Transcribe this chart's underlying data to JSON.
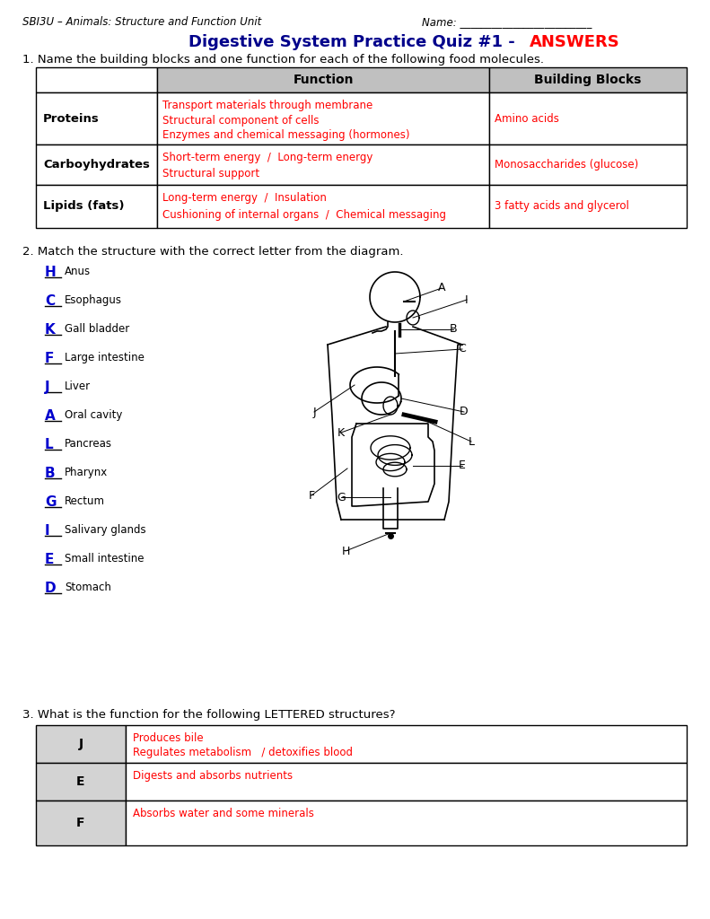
{
  "title_left": "SBI3U – Animals: Structure and Function Unit",
  "title_right": "Name: _________________________",
  "main_title": "Digestive System Practice Quiz #1 - ",
  "answers_word": "ANSWERS",
  "q1_text": "1. Name the building blocks and one function for each of the following food molecules.",
  "table1_headers": [
    "",
    "Function",
    "Building Blocks"
  ],
  "table1_rows": [
    {
      "molecule": "Proteins",
      "function": "Transport materials through membrane\nStructural component of cells\nEnzymes and chemical messaging (hormones)",
      "building_blocks": "Amino acids"
    },
    {
      "molecule": "Carboyhydrates",
      "function": "Short-term energy  /  Long-term energy\nStructural support",
      "building_blocks": "Monosaccharides (glucose)"
    },
    {
      "molecule": "Lipids (fats)",
      "function": "Long-term energy  /  Insulation\nCushioning of internal organs  /  Chemical messaging",
      "building_blocks": "3 fatty acids and glycerol"
    }
  ],
  "q2_text": "2. Match the structure with the correct letter from the diagram.",
  "match_items": [
    {
      "letter": "H",
      "label": "Anus"
    },
    {
      "letter": "C",
      "label": "Esophagus"
    },
    {
      "letter": "K",
      "label": "Gall bladder"
    },
    {
      "letter": "F",
      "label": "Large intestine"
    },
    {
      "letter": "J",
      "label": "Liver"
    },
    {
      "letter": "A",
      "label": "Oral cavity"
    },
    {
      "letter": "L",
      "label": "Pancreas"
    },
    {
      "letter": "B",
      "label": "Pharynx"
    },
    {
      "letter": "G",
      "label": "Rectum"
    },
    {
      "letter": "I",
      "label": "Salivary glands"
    },
    {
      "letter": "E",
      "label": "Small intestine"
    },
    {
      "letter": "D",
      "label": "Stomach"
    }
  ],
  "q3_text": "3. What is the function for the following LETTERED structures?",
  "table3_rows": [
    {
      "letter": "J",
      "function": "Produces bile\nRegulates metabolism   / detoxifies blood"
    },
    {
      "letter": "E",
      "function": "Digests and absorbs nutrients"
    },
    {
      "letter": "F",
      "function": "Absorbs water and some minerals"
    }
  ],
  "red_color": "#FF0000",
  "blue_color": "#0000CD",
  "dark_blue": "#00008B",
  "header_bg": "#C0C0C0",
  "cell_bg_left": "#D3D3D3",
  "black": "#000000",
  "white": "#FFFFFF"
}
